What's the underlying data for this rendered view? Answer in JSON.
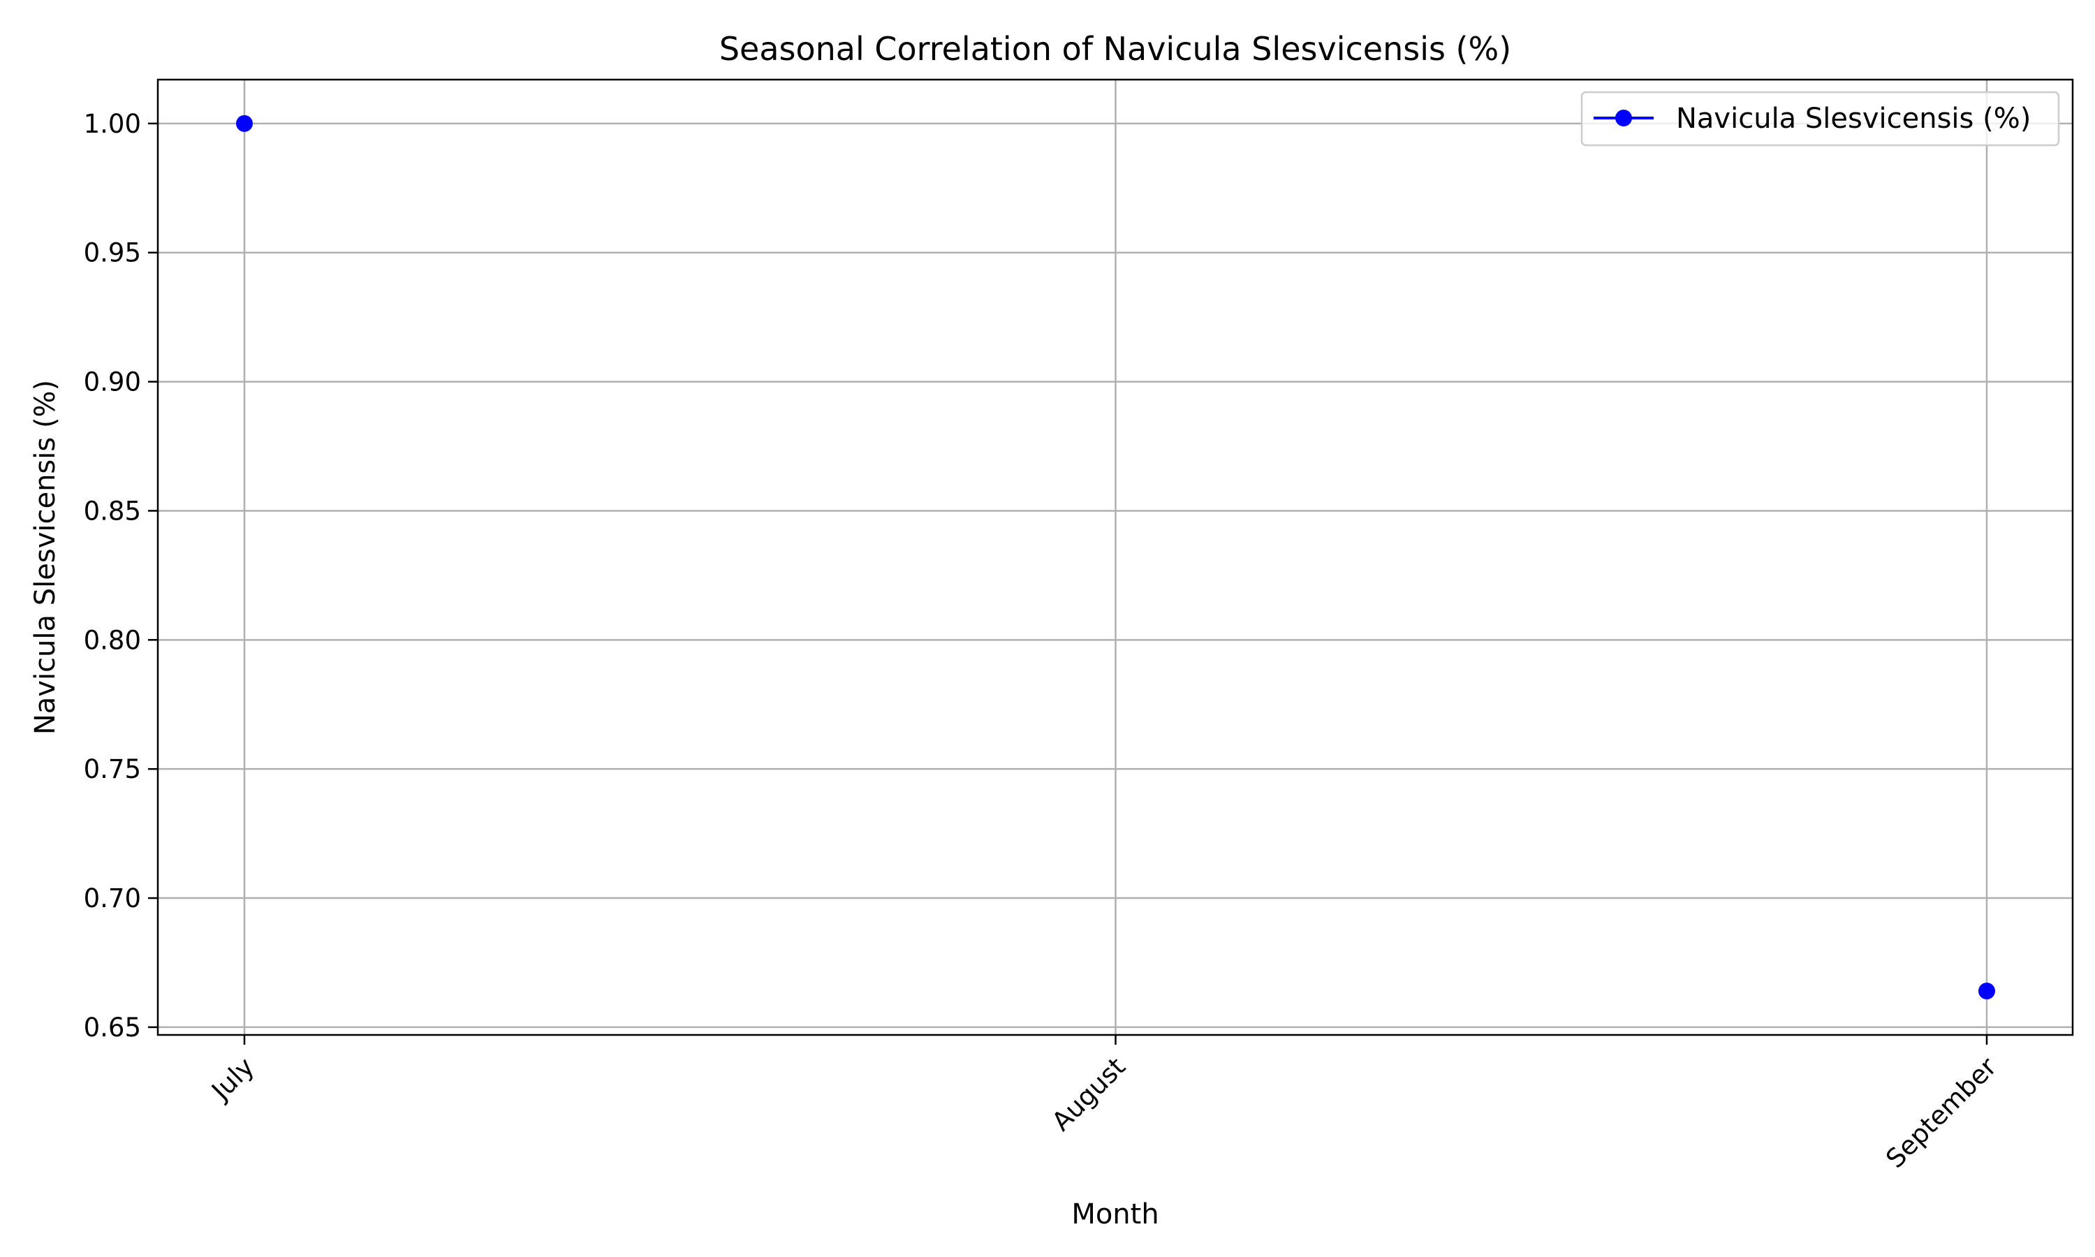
{
  "chart_data": {
    "type": "line",
    "title": "Seasonal Correlation of Navicula Slesvicensis (%)",
    "xlabel": "Month",
    "ylabel": "Navicula Slesvicensis (%)",
    "categories": [
      "July",
      "August",
      "September"
    ],
    "series": [
      {
        "name": "Navicula Slesvicensis (%)",
        "color": "#0000ff",
        "marker": "circle",
        "values": [
          1.0,
          null,
          0.664
        ]
      }
    ],
    "ylim": [
      0.647,
      1.017
    ],
    "yticks": [
      0.65,
      0.7,
      0.75,
      0.8,
      0.85,
      0.9,
      0.95,
      1.0
    ],
    "ytick_labels": [
      "0.65",
      "0.70",
      "0.75",
      "0.80",
      "0.85",
      "0.90",
      "0.95",
      "1.00"
    ],
    "xtick_rotation_deg": 45,
    "grid": true,
    "legend_position": "top-right"
  }
}
